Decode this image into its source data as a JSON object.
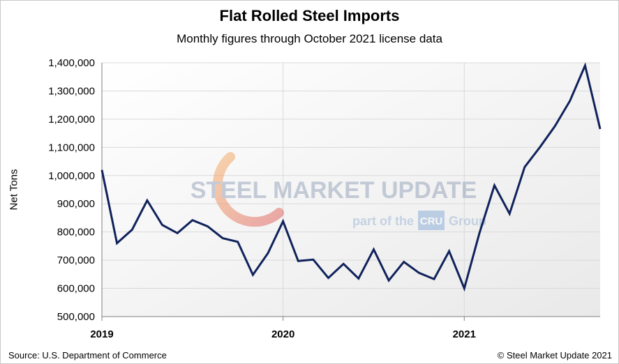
{
  "chart_data": {
    "type": "line",
    "title": "Flat Rolled Steel Imports",
    "subtitle": "Monthly figures through October 2021 license data",
    "ylabel": "Net Tons",
    "xlabel": "",
    "ylim": [
      500000,
      1400000
    ],
    "ytick_labels": [
      "500,000",
      "600,000",
      "700,000",
      "800,000",
      "900,000",
      "1,000,000",
      "1,100,000",
      "1,200,000",
      "1,300,000",
      "1,400,000"
    ],
    "xtick_labels": [
      "2019",
      "2020",
      "2021"
    ],
    "grid": true,
    "series": [
      {
        "values": [
          1020000,
          760000,
          808000,
          912000,
          825000,
          796000,
          842000,
          820000,
          778000,
          765000,
          648000,
          725000,
          838000,
          697000,
          702000,
          637000,
          687000,
          635000,
          738000,
          628000,
          694000,
          655000,
          633000,
          732000,
          600000,
          795000,
          965000,
          865000,
          1030000,
          1100000,
          1175000,
          1265000,
          1390000,
          1165000
        ]
      }
    ],
    "line_color": "#10225b"
  },
  "watermark": {
    "line1": "STEEL MARKET UPDATE",
    "line2_prefix": "part of the",
    "logo": "CRU",
    "line2_suffix": "Group"
  },
  "footer": {
    "source": "Source: U.S. Department of Commerce",
    "copyright": "© Steel Market Update 2021"
  }
}
